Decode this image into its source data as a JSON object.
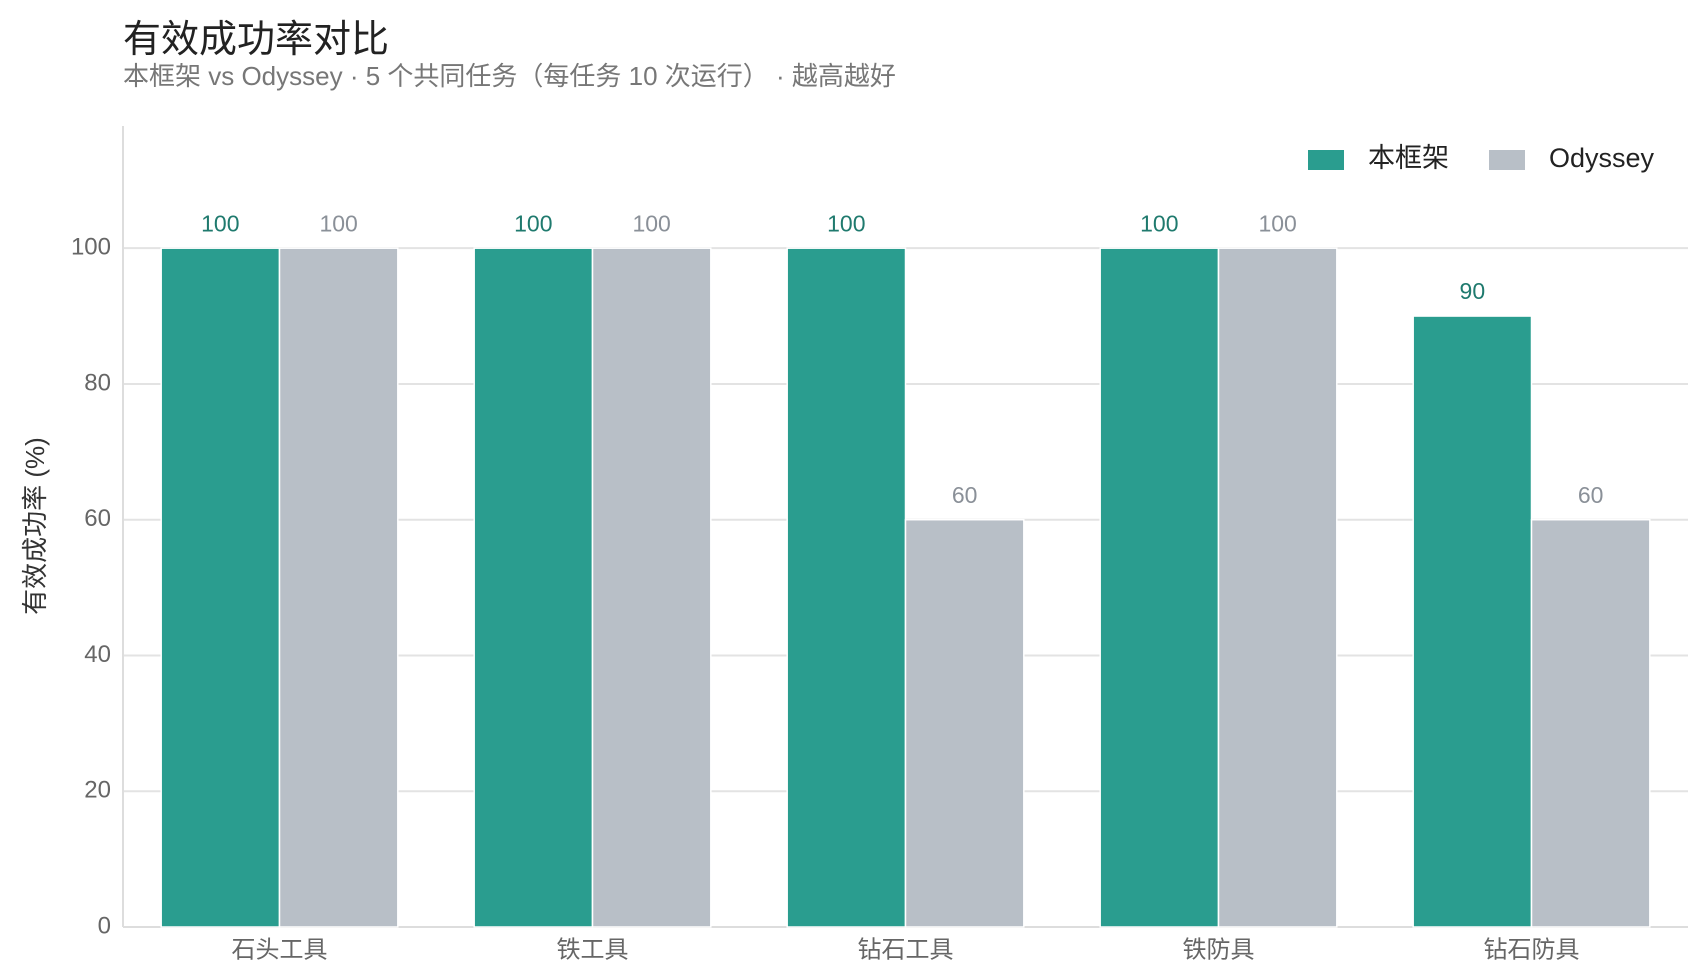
{
  "chart_data": {
    "type": "bar",
    "title": "有效成功率对比",
    "subtitle": "本框架 vs Odyssey · 5 个共同任务（每任务 10 次运行） · 越高越好",
    "y_label": "有效成功率 (%)",
    "categories": [
      "石头工具",
      "铁工具",
      "钻石工具",
      "铁防具",
      "钻石防具"
    ],
    "series": [
      {
        "name": "本框架",
        "color": "#2a9d8f",
        "label_color": "#1f7a6e",
        "values": [
          100,
          100,
          100,
          100,
          90
        ]
      },
      {
        "name": "Odyssey",
        "color": "#b8bfc7",
        "label_color": "#8a9098",
        "values": [
          100,
          100,
          60,
          100,
          60
        ]
      }
    ],
    "ylim": [
      0,
      118
    ],
    "yticks": [
      0,
      20,
      40,
      60,
      80,
      100
    ],
    "grid": true,
    "legend": "top-right"
  }
}
